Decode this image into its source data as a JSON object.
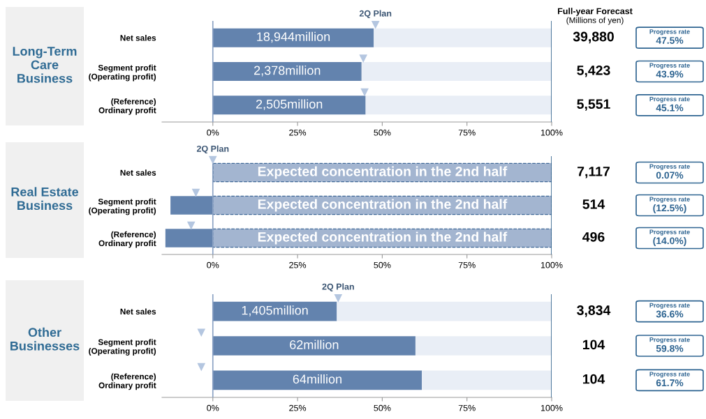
{
  "chart_data": [
    {
      "type": "bar",
      "orientation": "horizontal",
      "stacked": true,
      "title": "Long-Term\nCare\nBusiness",
      "categories": [
        "Net sales",
        "Segment profit\n(Operating profit)",
        "(Reference)\nOrdinary profit"
      ],
      "series": [
        {
          "color": "#6383ae",
          "values": [
            47.5,
            43.9,
            45.1
          ]
        },
        {
          "color": "#e9eef6",
          "values": [
            52.5,
            56.1,
            54.9
          ]
        },
        {
          "type": "scatter",
          "name": "2Q Plan",
          "color": "#b4c6e0",
          "marker": "triangle",
          "values": [
            48,
            44.4,
            44.8
          ]
        }
      ],
      "xlim": [
        -15,
        100
      ],
      "xticks": [
        {
          "value": 0,
          "label": "0%"
        },
        {
          "value": 25,
          "label": "25%"
        },
        {
          "value": 50,
          "label": "50%"
        },
        {
          "value": 75,
          "label": "75%"
        },
        {
          "value": 100,
          "label": "100%"
        }
      ],
      "ref_lines": [
        {
          "axis": "x",
          "value": 0,
          "color": "#8aa2c4"
        },
        {
          "axis": "x",
          "value": 100,
          "color": "#2e5f8a"
        }
      ],
      "annotations": [
        "39,880",
        "5,423",
        "5,551",
        "Progress rate\n47.5%",
        "Progress rate\n43.9%",
        "Progress rate\n45.1%",
        "18,944million",
        "2,378million",
        "2,505million",
        "Full-year Forecast",
        "(Millions of yen)"
      ]
    },
    {
      "type": "bar",
      "orientation": "horizontal",
      "stacked": true,
      "title": "Real Estate\nBusiness",
      "categories": [
        "Net sales",
        "Segment profit\n(Operating profit)",
        "(Reference)\nOrdinary profit"
      ],
      "series": [
        {
          "color": "#6383ae",
          "values": [
            0.07,
            -12.5,
            -14.0
          ]
        },
        {
          "color": "#a3b5d0",
          "line_style": "dashed",
          "values": [
            99.93,
            100,
            100
          ]
        },
        {
          "type": "scatter",
          "name": "2Q Plan",
          "color": "#b4c6e0",
          "marker": "triangle",
          "values": [
            0,
            -5,
            -6.4
          ]
        }
      ],
      "xlim": [
        -15,
        100
      ],
      "xticks": [
        {
          "value": 0,
          "label": "0%"
        },
        {
          "value": 25,
          "label": "25%"
        },
        {
          "value": 50,
          "label": "50%"
        },
        {
          "value": 75,
          "label": "75%"
        },
        {
          "value": 100,
          "label": "100%"
        }
      ],
      "ref_lines": [
        {
          "axis": "x",
          "value": 0,
          "color": "#8aa2c4"
        },
        {
          "axis": "x",
          "value": 100,
          "color": "#2e5f8a"
        }
      ],
      "annotations": [
        "7,117",
        "514",
        "496",
        "Progress rate\n0.07%",
        "Progress rate\n(12.5%)",
        "Progress rate\n(14.0%)",
        "Expected concentration in the 2nd half",
        "Expected concentration in the 2nd half",
        "Expected concentration in the 2nd half"
      ]
    },
    {
      "type": "bar",
      "orientation": "horizontal",
      "stacked": true,
      "title": "Other\nBusinesses",
      "categories": [
        "Net sales",
        "Segment profit\n(Operating profit)",
        "(Reference)\nOrdinary profit"
      ],
      "series": [
        {
          "color": "#6383ae",
          "values": [
            36.6,
            59.8,
            61.7
          ]
        },
        {
          "color": "#e9eef6",
          "values": [
            63.4,
            40.2,
            38.3
          ]
        },
        {
          "type": "scatter",
          "name": "2Q Plan",
          "color": "#b4c6e0",
          "marker": "triangle",
          "values": [
            37,
            -3.4,
            -3.4
          ]
        }
      ],
      "xlim": [
        -15,
        100
      ],
      "xticks": [
        {
          "value": 0,
          "label": "0%"
        },
        {
          "value": 25,
          "label": "25%"
        },
        {
          "value": 50,
          "label": "50%"
        },
        {
          "value": 75,
          "label": "75%"
        },
        {
          "value": 100,
          "label": "100%"
        }
      ],
      "ref_lines": [
        {
          "axis": "x",
          "value": 0,
          "color": "#8aa2c4"
        },
        {
          "axis": "x",
          "value": 100,
          "color": "#2e5f8a"
        }
      ],
      "annotations": [
        "3,834",
        "104",
        "104",
        "Progress rate\n36.6%",
        "Progress rate\n59.8%",
        "Progress rate\n61.7%",
        "1,405million",
        "62million",
        "64million"
      ]
    }
  ]
}
